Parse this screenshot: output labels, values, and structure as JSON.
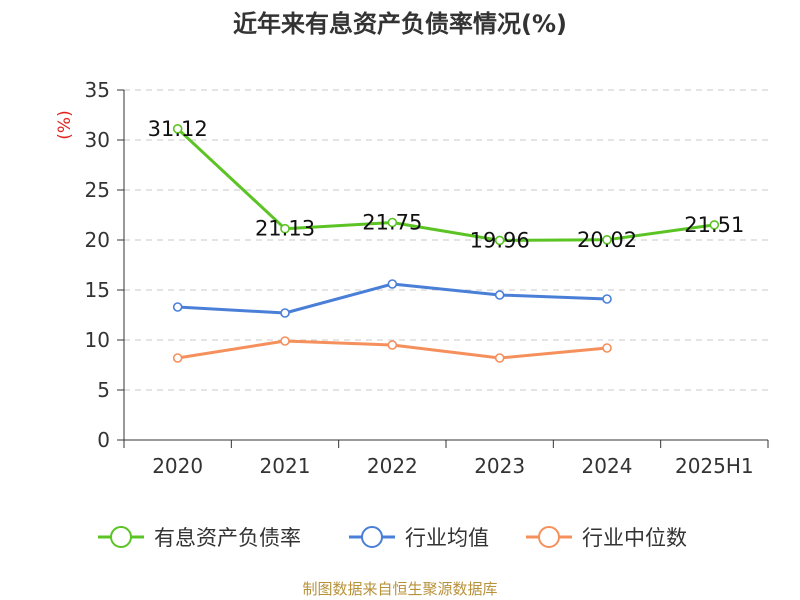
{
  "title": "近年来有息资产负债率情况(%)",
  "source": "制图数据来自恒生聚源数据库",
  "chart_data": {
    "type": "line",
    "categories": [
      "2020",
      "2021",
      "2022",
      "2023",
      "2024",
      "2025H1"
    ],
    "ylabel": "(%)",
    "ylim": [
      0,
      35
    ],
    "yticks": [
      0,
      5,
      10,
      15,
      20,
      25,
      30,
      35
    ],
    "grid": true,
    "legend_position": "bottom",
    "series": [
      {
        "name": "有息资产负债率",
        "color": "#5bc424",
        "values": [
          31.12,
          21.13,
          21.75,
          19.96,
          20.02,
          21.51
        ],
        "labels": [
          "31.12",
          "21.13",
          "21.75",
          "19.96",
          "20.02",
          "21.51"
        ]
      },
      {
        "name": "行业均值",
        "color": "#4a7fd8",
        "values": [
          13.3,
          12.7,
          15.6,
          14.5,
          14.1,
          null
        ]
      },
      {
        "name": "行业中位数",
        "color": "#f5905c",
        "values": [
          8.2,
          9.9,
          9.5,
          8.2,
          9.2,
          null
        ]
      }
    ]
  }
}
